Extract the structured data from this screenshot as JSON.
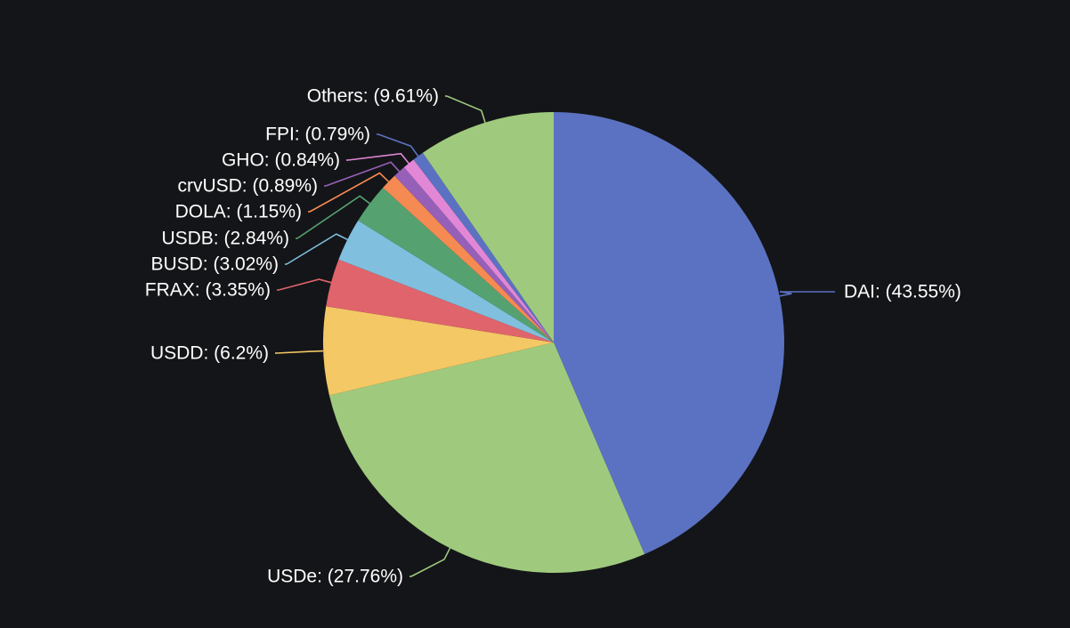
{
  "chart_data": {
    "type": "pie",
    "title": "",
    "start_angle_deg": 0,
    "direction": "clockwise",
    "background": "#141518",
    "slices": [
      {
        "name": "DAI",
        "value": 43.55,
        "label": "DAI: (43.55%)",
        "color": "#5b72c2"
      },
      {
        "name": "USDe",
        "value": 27.76,
        "label": "USDe: (27.76%)",
        "color": "#9fca7d"
      },
      {
        "name": "USDD",
        "value": 6.2,
        "label": "USDD: (6.2%)",
        "color": "#f3c865"
      },
      {
        "name": "FRAX",
        "value": 3.35,
        "label": "FRAX: (3.35%)",
        "color": "#e0646b"
      },
      {
        "name": "BUSD",
        "value": 3.02,
        "label": "BUSD: (3.02%)",
        "color": "#80bfde"
      },
      {
        "name": "USDB",
        "value": 2.84,
        "label": "USDB: (2.84%)",
        "color": "#56a170"
      },
      {
        "name": "DOLA",
        "value": 1.15,
        "label": "DOLA: (1.15%)",
        "color": "#f58a52"
      },
      {
        "name": "crvUSD",
        "value": 0.89,
        "label": "crvUSD: (0.89%)",
        "color": "#9660b8"
      },
      {
        "name": "GHO",
        "value": 0.84,
        "label": "GHO: (0.84%)",
        "color": "#e287d6"
      },
      {
        "name": "FPI",
        "value": 0.79,
        "label": "FPI: (0.79%)",
        "color": "#5b72c2"
      },
      {
        "name": "Others",
        "value": 9.61,
        "label": "Others: (9.61%)",
        "color": "#9fca7d"
      }
    ]
  }
}
